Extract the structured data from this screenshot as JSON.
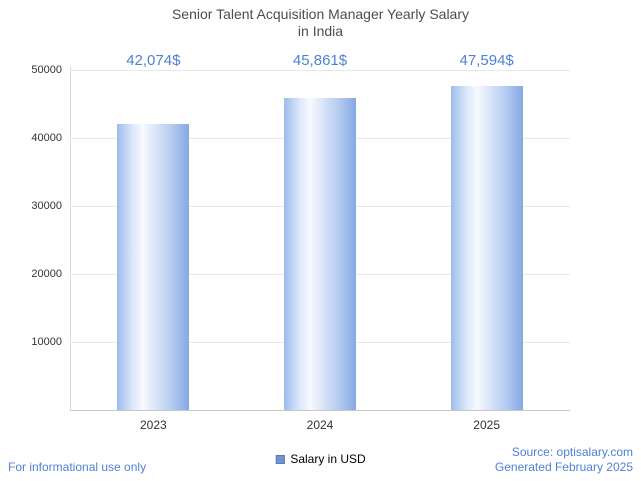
{
  "title": {
    "line1": "Senior Talent Acquisition Manager Yearly Salary",
    "line2": "in India"
  },
  "chart_data": {
    "type": "bar",
    "title": "Senior Talent Acquisition Manager Yearly Salary in India",
    "categories": [
      "2023",
      "2024",
      "2025"
    ],
    "values": [
      42074,
      45861,
      47594
    ],
    "value_labels": [
      "42,074$",
      "45,861$",
      "47,594$"
    ],
    "xlabel": "",
    "ylabel": "",
    "ylim": [
      0,
      50000
    ],
    "yticks": [
      10000,
      20000,
      30000,
      40000,
      50000
    ],
    "grid": true,
    "legend_entries": [
      "Salary in USD"
    ],
    "legend_position": "bottom-center"
  },
  "legend": {
    "label": "Salary in USD"
  },
  "footer": {
    "disclaimer": "For informational use only",
    "source": "Source: optisalary.com",
    "generated": "Generated February 2025"
  },
  "colors": {
    "accent_text": "#4f81d4",
    "bar_main": "#85a8e3",
    "legend_swatch": "#7193d1",
    "title_text": "#4d4d4d",
    "axis_text": "#333333",
    "gridline": "#e8e8e8"
  }
}
